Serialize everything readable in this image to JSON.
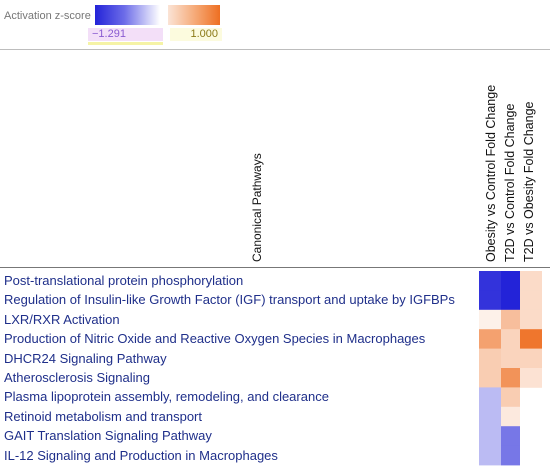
{
  "legend": {
    "title": "Activation z-score",
    "min_label": "−1.291",
    "max_label": "1.000",
    "colors": {
      "negative": "#2323d8",
      "neutral": "#ffffff",
      "positive": "#ee6f22"
    }
  },
  "chart_data": {
    "type": "heatmap",
    "row_header": "Canonical Pathways",
    "columns": [
      "Obesity vs Control Fold Change",
      "T2D vs Control Fold Change",
      "T2D vs Obesity Fold Change"
    ],
    "rows": [
      "Post-translational protein phosphorylation",
      "Regulation of Insulin-like Growth Factor (IGF) transport and uptake by IGFBPs",
      "LXR/RXR Activation",
      "Production of Nitric Oxide and Reactive Oxygen Species in Macrophages",
      "DHCR24 Signaling Pathway",
      "Atherosclerosis Signaling",
      "Plasma lipoprotein assembly, remodeling, and clearance",
      "Retinoid metabolism and transport",
      "GAIT Translation Signaling Pathway",
      "IL-12 Signaling and Production in Macrophages"
    ],
    "zlim": [
      -1.291,
      1.0
    ],
    "values": [
      [
        -1.2,
        -1.29,
        0.25
      ],
      [
        -1.2,
        -1.29,
        0.25
      ],
      [
        0.1,
        0.45,
        0.25
      ],
      [
        0.65,
        0.3,
        0.95
      ],
      [
        0.35,
        0.3,
        0.3
      ],
      [
        0.35,
        0.75,
        0.2
      ],
      [
        -0.4,
        0.35,
        null
      ],
      [
        -0.4,
        0.15,
        null
      ],
      [
        -0.4,
        -0.8,
        null
      ],
      [
        -0.4,
        -0.8,
        null
      ]
    ]
  }
}
